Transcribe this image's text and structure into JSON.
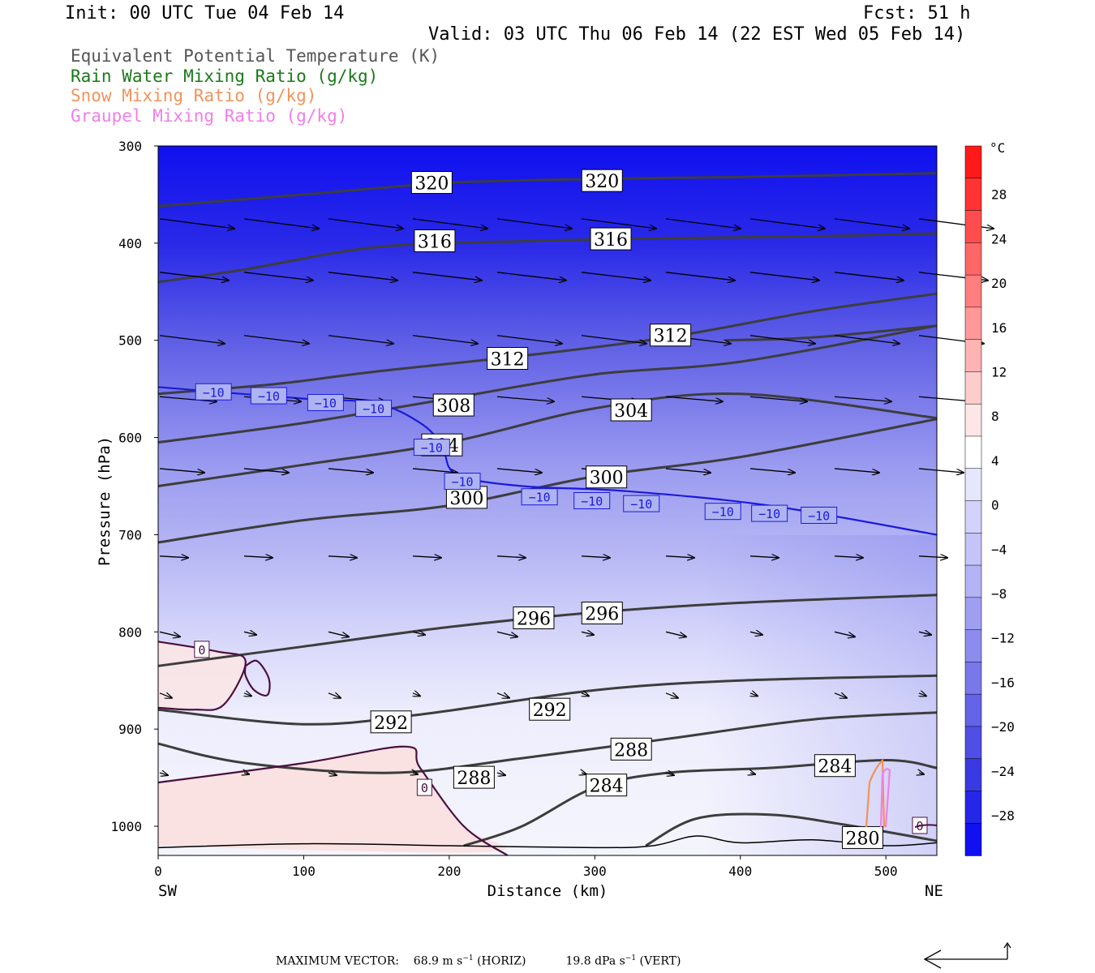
{
  "header": {
    "init": "Init: 00 UTC Tue 04 Feb 14",
    "fcst": "Fcst:   51 h",
    "valid": "Valid: 03 UTC Thu 06 Feb 14 (22 EST Wed 05 Feb 14)"
  },
  "legend": [
    {
      "label": "Equivalent Potential Temperature (K)",
      "color": "#555555"
    },
    {
      "label": "Rain Water Mixing Ratio (g/kg)",
      "color": "#1a7a1a"
    },
    {
      "label": "Snow Mixing Ratio (g/kg)",
      "color": "#f0935a"
    },
    {
      "label": "Graupel Mixing Ratio (g/kg)",
      "color": "#f07fe8"
    }
  ],
  "colorbar": {
    "unit": "°C",
    "labels": [
      "28",
      "24",
      "20",
      "16",
      "12",
      "8",
      "4",
      "0",
      "−4",
      "−8",
      "−12",
      "−16",
      "−20",
      "−24",
      "−28"
    ],
    "colors": [
      "#ff1a1a",
      "#ff3333",
      "#ff4d4d",
      "#ff6666",
      "#ff7f7f",
      "#ff9999",
      "#ffb3b3",
      "#ffcccc",
      "#ffe6e6",
      "#ffffff",
      "#e6e6ff",
      "#d2d2fb",
      "#c4c4f8",
      "#b3b3f5",
      "#9f9ff1",
      "#8c8cee",
      "#7878eb",
      "#6464e8",
      "#4f4fe6",
      "#3a3ae3",
      "#2626e8",
      "#1010f0"
    ]
  },
  "footer": {
    "prefix": "MAXIMUM VECTOR:",
    "horiz_value": "68.9 m s",
    "horiz_unit": "(HORIZ)",
    "vert_value": "19.8 dPa s",
    "vert_unit": "(VERT)",
    "exp": "−1"
  },
  "chart_data": {
    "type": "cross-section",
    "xlabel": "Distance (km)",
    "ylabel": "Pressure (hPa)",
    "xlim": [
      0,
      535
    ],
    "ylim": [
      1030,
      300
    ],
    "x_ticks": [
      0,
      100,
      200,
      300,
      400,
      500
    ],
    "y_ticks": [
      300,
      400,
      500,
      600,
      700,
      800,
      900,
      1000
    ],
    "x_end_labels": {
      "left": "SW",
      "right": "NE"
    },
    "theta_e_contours": [
      {
        "label": "320",
        "pts": [
          [
            0,
            362
          ],
          [
            100,
            350
          ],
          [
            200,
            338
          ],
          [
            300,
            334
          ],
          [
            400,
            332
          ],
          [
            535,
            328
          ]
        ],
        "labels_at": [
          [
            188,
            338
          ],
          [
            305,
            336
          ]
        ]
      },
      {
        "label": "316",
        "pts": [
          [
            0,
            440
          ],
          [
            60,
            427
          ],
          [
            150,
            404
          ],
          [
            250,
            398
          ],
          [
            350,
            395
          ],
          [
            450,
            393
          ],
          [
            535,
            390
          ]
        ],
        "labels_at": [
          [
            190,
            398
          ],
          [
            311,
            396
          ]
        ]
      },
      {
        "label": "312",
        "pts": [
          [
            0,
            555
          ],
          [
            80,
            545
          ],
          [
            150,
            532
          ],
          [
            250,
            516
          ],
          [
            350,
            497
          ],
          [
            450,
            470
          ],
          [
            535,
            452
          ]
        ],
        "labels_at": [
          [
            240,
            519
          ],
          [
            352,
            495
          ]
        ]
      },
      {
        "label": "312",
        "pts": [
          [
            390,
            500
          ],
          [
            450,
            497
          ],
          [
            535,
            485
          ]
        ],
        "labels_at": []
      },
      {
        "label": "308",
        "pts": [
          [
            0,
            605
          ],
          [
            100,
            585
          ],
          [
            200,
            560
          ],
          [
            300,
            535
          ],
          [
            400,
            522
          ],
          [
            535,
            485
          ]
        ],
        "labels_at": [
          [
            203,
            567
          ]
        ]
      },
      {
        "label": "304",
        "pts": [
          [
            0,
            650
          ],
          [
            100,
            628
          ],
          [
            200,
            605
          ],
          [
            300,
            570
          ],
          [
            400,
            555
          ],
          [
            535,
            580
          ]
        ],
        "labels_at": [
          [
            195,
            608
          ],
          [
            325,
            572
          ]
        ]
      },
      {
        "label": "300",
        "pts": [
          [
            0,
            708
          ],
          [
            100,
            685
          ],
          [
            200,
            670
          ],
          [
            300,
            640
          ],
          [
            400,
            620
          ],
          [
            535,
            581
          ]
        ],
        "labels_at": [
          [
            212,
            662
          ],
          [
            308,
            641
          ]
        ]
      },
      {
        "label": "296",
        "pts": [
          [
            0,
            835
          ],
          [
            100,
            815
          ],
          [
            200,
            795
          ],
          [
            300,
            780
          ],
          [
            400,
            770
          ],
          [
            535,
            762
          ]
        ],
        "labels_at": [
          [
            258,
            786
          ],
          [
            305,
            781
          ]
        ]
      },
      {
        "label": "292",
        "pts": [
          [
            0,
            880
          ],
          [
            100,
            895
          ],
          [
            180,
            885
          ],
          [
            300,
            860
          ],
          [
            400,
            850
          ],
          [
            535,
            845
          ]
        ],
        "labels_at": [
          [
            160,
            893
          ],
          [
            269,
            880
          ]
        ]
      },
      {
        "label": "288",
        "pts": [
          [
            0,
            915
          ],
          [
            60,
            935
          ],
          [
            160,
            945
          ],
          [
            250,
            930
          ],
          [
            350,
            910
          ],
          [
            450,
            890
          ],
          [
            535,
            883
          ]
        ],
        "labels_at": [
          [
            217,
            950
          ],
          [
            325,
            921
          ]
        ]
      },
      {
        "label": "284",
        "pts": [
          [
            210,
            1020
          ],
          [
            250,
            1000
          ],
          [
            300,
            960
          ],
          [
            350,
            945
          ],
          [
            420,
            940
          ],
          [
            500,
            932
          ],
          [
            535,
            940
          ]
        ],
        "labels_at": [
          [
            308,
            958
          ],
          [
            465,
            938
          ]
        ]
      },
      {
        "label": "280",
        "pts": [
          [
            335,
            1020
          ],
          [
            370,
            992
          ],
          [
            420,
            988
          ],
          [
            470,
            998
          ],
          [
            535,
            1015
          ]
        ],
        "labels_at": [
          [
            484,
            1012
          ]
        ]
      }
    ],
    "temperature_isotherms": [
      {
        "label": "−10",
        "color": "#1a1adc",
        "pts": [
          [
            0,
            548
          ],
          [
            40,
            553
          ],
          [
            100,
            560
          ],
          [
            150,
            565
          ],
          [
            180,
            585
          ],
          [
            195,
            608
          ],
          [
            205,
            638
          ],
          [
            250,
            650
          ],
          [
            320,
            655
          ],
          [
            420,
            670
          ],
          [
            535,
            700
          ]
        ],
        "labels_at": [
          [
            38,
            553
          ],
          [
            76,
            557
          ],
          [
            115,
            564
          ],
          [
            148,
            570
          ],
          [
            188,
            610
          ],
          [
            209,
            645
          ],
          [
            262,
            661
          ],
          [
            298,
            665
          ],
          [
            332,
            668
          ],
          [
            388,
            676
          ],
          [
            420,
            678
          ],
          [
            454,
            680
          ]
        ]
      },
      {
        "label": "0",
        "color": "#4a1040",
        "pts": [
          [
            0,
            810
          ],
          [
            40,
            820
          ],
          [
            60,
            830
          ],
          [
            45,
            875
          ],
          [
            25,
            880
          ],
          [
            0,
            878
          ]
        ],
        "labels_at": [
          [
            30,
            818
          ]
        ]
      },
      {
        "label": "0",
        "color": "#4a1040",
        "pts": [
          [
            0,
            955
          ],
          [
            100,
            935
          ],
          [
            170,
            918
          ],
          [
            180,
            940
          ],
          [
            210,
            1000
          ],
          [
            240,
            1030
          ]
        ],
        "labels_at": [
          [
            183,
            960
          ]
        ]
      }
    ],
    "wind_vectors_note": "horizontal-vertical circulation vectors",
    "max_vector": {
      "horiz": 68.9,
      "vert": 19.8
    }
  }
}
